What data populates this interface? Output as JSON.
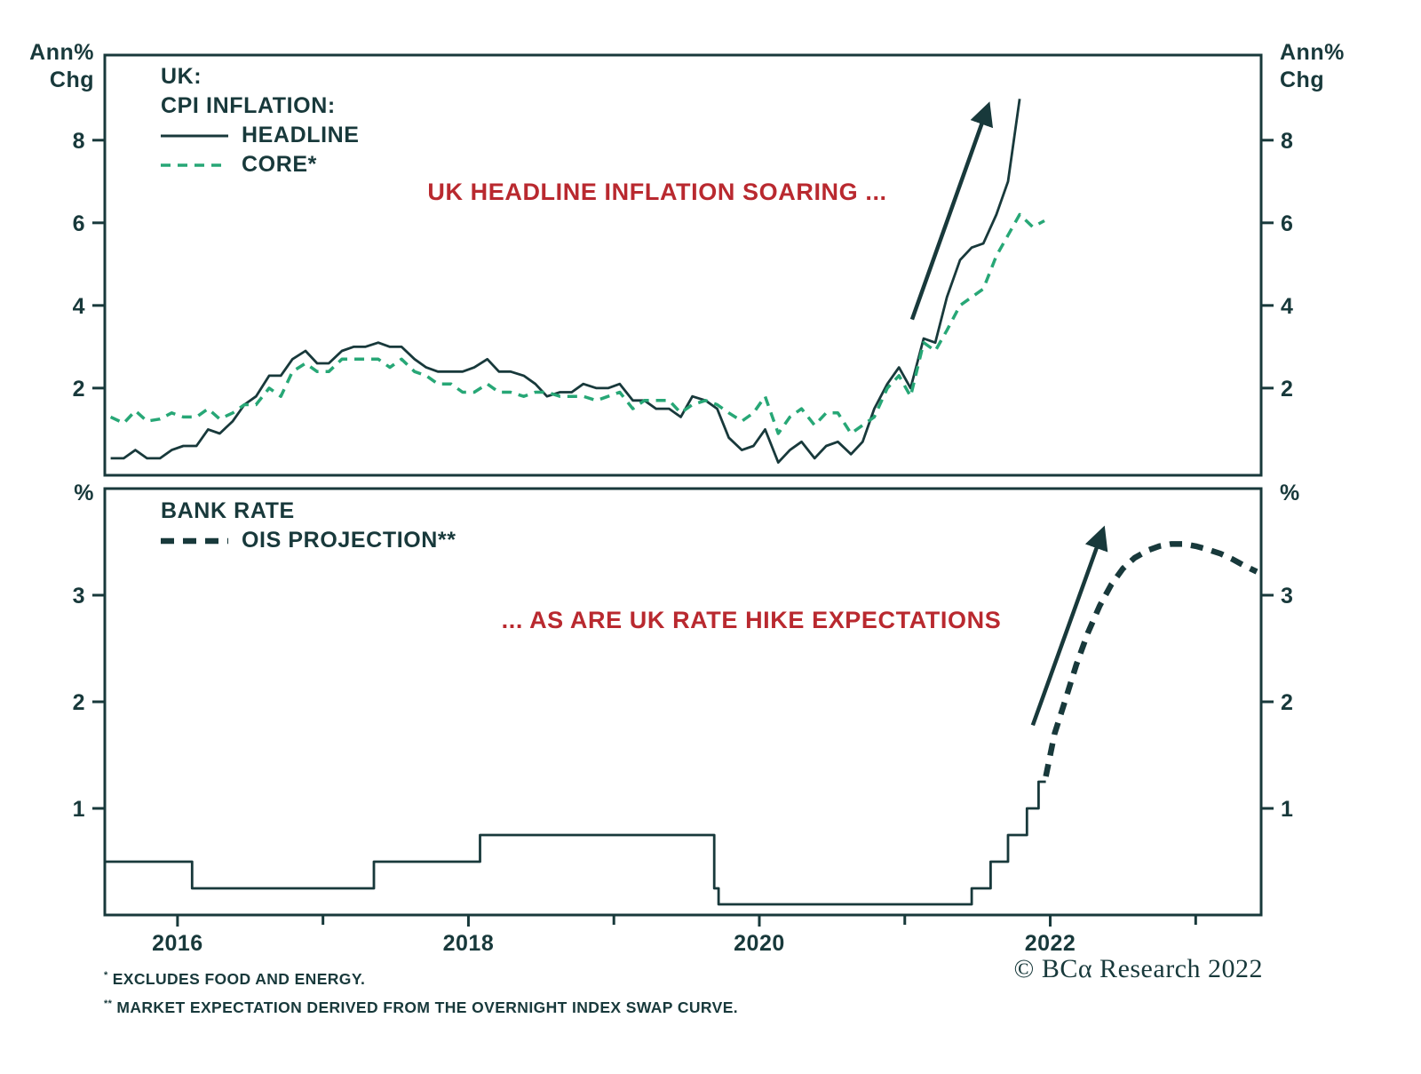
{
  "colors": {
    "background": "#ffffff",
    "dark": "#18393b",
    "green": "#27a776",
    "red": "#b9292f"
  },
  "axes": {
    "top_left_unit": [
      "Ann%",
      "Chg"
    ],
    "top_right_unit": [
      "Ann%",
      "Chg"
    ],
    "bottom_left_unit": "%",
    "bottom_right_unit": "%"
  },
  "legend_top": {
    "line1": "UK:",
    "line2": "CPI INFLATION:"
  },
  "chart_data": [
    {
      "type": "line",
      "panel": "top",
      "ylabel": "Ann% Chg",
      "ylim": [
        -0.11,
        10.06
      ],
      "yticks": [
        2,
        4,
        6,
        8
      ],
      "xlim": [
        2016.0,
        2023.95
      ],
      "grid": false,
      "legend_position": "top-left-inside",
      "series": [
        {
          "name": "HEADLINE",
          "style": "solid",
          "color": "#18393b",
          "points": [
            [
              2016.04,
              0.3
            ],
            [
              2016.13,
              0.3
            ],
            [
              2016.21,
              0.5
            ],
            [
              2016.29,
              0.3
            ],
            [
              2016.38,
              0.3
            ],
            [
              2016.46,
              0.5
            ],
            [
              2016.54,
              0.6
            ],
            [
              2016.63,
              0.6
            ],
            [
              2016.71,
              1.0
            ],
            [
              2016.79,
              0.9
            ],
            [
              2016.88,
              1.2
            ],
            [
              2016.96,
              1.6
            ],
            [
              2017.04,
              1.8
            ],
            [
              2017.13,
              2.3
            ],
            [
              2017.21,
              2.3
            ],
            [
              2017.29,
              2.7
            ],
            [
              2017.38,
              2.9
            ],
            [
              2017.46,
              2.6
            ],
            [
              2017.54,
              2.6
            ],
            [
              2017.63,
              2.9
            ],
            [
              2017.71,
              3.0
            ],
            [
              2017.79,
              3.0
            ],
            [
              2017.88,
              3.1
            ],
            [
              2017.96,
              3.0
            ],
            [
              2018.04,
              3.0
            ],
            [
              2018.13,
              2.7
            ],
            [
              2018.21,
              2.5
            ],
            [
              2018.29,
              2.4
            ],
            [
              2018.38,
              2.4
            ],
            [
              2018.46,
              2.4
            ],
            [
              2018.54,
              2.5
            ],
            [
              2018.63,
              2.7
            ],
            [
              2018.71,
              2.4
            ],
            [
              2018.79,
              2.4
            ],
            [
              2018.88,
              2.3
            ],
            [
              2018.96,
              2.1
            ],
            [
              2019.04,
              1.8
            ],
            [
              2019.13,
              1.9
            ],
            [
              2019.21,
              1.9
            ],
            [
              2019.29,
              2.1
            ],
            [
              2019.38,
              2.0
            ],
            [
              2019.46,
              2.0
            ],
            [
              2019.54,
              2.1
            ],
            [
              2019.63,
              1.7
            ],
            [
              2019.71,
              1.7
            ],
            [
              2019.79,
              1.5
            ],
            [
              2019.88,
              1.5
            ],
            [
              2019.96,
              1.3
            ],
            [
              2020.04,
              1.8
            ],
            [
              2020.13,
              1.7
            ],
            [
              2020.21,
              1.5
            ],
            [
              2020.29,
              0.8
            ],
            [
              2020.38,
              0.5
            ],
            [
              2020.46,
              0.6
            ],
            [
              2020.54,
              1.0
            ],
            [
              2020.63,
              0.2
            ],
            [
              2020.71,
              0.5
            ],
            [
              2020.79,
              0.7
            ],
            [
              2020.88,
              0.3
            ],
            [
              2020.96,
              0.6
            ],
            [
              2021.04,
              0.7
            ],
            [
              2021.13,
              0.4
            ],
            [
              2021.21,
              0.7
            ],
            [
              2021.29,
              1.5
            ],
            [
              2021.38,
              2.1
            ],
            [
              2021.46,
              2.5
            ],
            [
              2021.54,
              2.0
            ],
            [
              2021.63,
              3.2
            ],
            [
              2021.71,
              3.1
            ],
            [
              2021.79,
              4.2
            ],
            [
              2021.88,
              5.1
            ],
            [
              2021.96,
              5.4
            ],
            [
              2022.04,
              5.5
            ],
            [
              2022.13,
              6.2
            ],
            [
              2022.21,
              7.0
            ],
            [
              2022.29,
              9.0
            ]
          ]
        },
        {
          "name": "CORE*",
          "style": "dashed",
          "color": "#27a776",
          "points": [
            [
              2016.04,
              1.3
            ],
            [
              2016.13,
              1.15
            ],
            [
              2016.21,
              1.45
            ],
            [
              2016.29,
              1.2
            ],
            [
              2016.38,
              1.25
            ],
            [
              2016.46,
              1.4
            ],
            [
              2016.54,
              1.3
            ],
            [
              2016.63,
              1.3
            ],
            [
              2016.71,
              1.5
            ],
            [
              2016.79,
              1.25
            ],
            [
              2016.88,
              1.4
            ],
            [
              2016.96,
              1.6
            ],
            [
              2017.04,
              1.6
            ],
            [
              2017.13,
              2.0
            ],
            [
              2017.21,
              1.8
            ],
            [
              2017.29,
              2.4
            ],
            [
              2017.38,
              2.6
            ],
            [
              2017.46,
              2.4
            ],
            [
              2017.54,
              2.4
            ],
            [
              2017.63,
              2.7
            ],
            [
              2017.71,
              2.7
            ],
            [
              2017.79,
              2.7
            ],
            [
              2017.88,
              2.7
            ],
            [
              2017.96,
              2.5
            ],
            [
              2018.04,
              2.7
            ],
            [
              2018.13,
              2.4
            ],
            [
              2018.21,
              2.3
            ],
            [
              2018.29,
              2.1
            ],
            [
              2018.38,
              2.1
            ],
            [
              2018.46,
              1.9
            ],
            [
              2018.54,
              1.9
            ],
            [
              2018.63,
              2.1
            ],
            [
              2018.71,
              1.9
            ],
            [
              2018.79,
              1.9
            ],
            [
              2018.88,
              1.8
            ],
            [
              2018.96,
              1.9
            ],
            [
              2019.04,
              1.9
            ],
            [
              2019.13,
              1.8
            ],
            [
              2019.21,
              1.8
            ],
            [
              2019.29,
              1.8
            ],
            [
              2019.38,
              1.7
            ],
            [
              2019.46,
              1.8
            ],
            [
              2019.54,
              1.9
            ],
            [
              2019.63,
              1.5
            ],
            [
              2019.71,
              1.7
            ],
            [
              2019.79,
              1.7
            ],
            [
              2019.88,
              1.7
            ],
            [
              2019.96,
              1.4
            ],
            [
              2020.04,
              1.6
            ],
            [
              2020.13,
              1.7
            ],
            [
              2020.21,
              1.6
            ],
            [
              2020.29,
              1.4
            ],
            [
              2020.38,
              1.2
            ],
            [
              2020.46,
              1.4
            ],
            [
              2020.54,
              1.8
            ],
            [
              2020.63,
              0.9
            ],
            [
              2020.71,
              1.3
            ],
            [
              2020.79,
              1.5
            ],
            [
              2020.88,
              1.1
            ],
            [
              2020.96,
              1.4
            ],
            [
              2021.04,
              1.4
            ],
            [
              2021.13,
              0.9
            ],
            [
              2021.21,
              1.1
            ],
            [
              2021.29,
              1.3
            ],
            [
              2021.38,
              2.0
            ],
            [
              2021.46,
              2.3
            ],
            [
              2021.54,
              1.8
            ],
            [
              2021.63,
              3.1
            ],
            [
              2021.71,
              2.9
            ],
            [
              2021.79,
              3.4
            ],
            [
              2021.88,
              4.0
            ],
            [
              2021.96,
              4.2
            ],
            [
              2022.04,
              4.4
            ],
            [
              2022.13,
              5.2
            ],
            [
              2022.21,
              5.7
            ],
            [
              2022.29,
              6.2
            ],
            [
              2022.38,
              5.9
            ],
            [
              2022.46,
              6.05
            ]
          ]
        }
      ],
      "annotation": {
        "text": "UK HEADLINE INFLATION SOARING ...",
        "color": "#b9292f"
      },
      "arrow": {
        "from": [
          2021.55,
          3.66
        ],
        "to": [
          2022.07,
          8.8
        ]
      }
    },
    {
      "type": "line",
      "panel": "bottom",
      "ylabel": "%",
      "ylim": [
        0,
        4.0
      ],
      "yticks": [
        1,
        2,
        3
      ],
      "xlim": [
        2016.0,
        2023.95
      ],
      "grid": false,
      "legend_position": "top-left-inside",
      "xticks_major": [
        {
          "x": 2016.5,
          "label": "2016"
        },
        {
          "x": 2018.5,
          "label": "2018"
        },
        {
          "x": 2020.5,
          "label": "2020"
        },
        {
          "x": 2022.5,
          "label": "2022"
        }
      ],
      "xticks_minor": [
        2017.5,
        2019.5,
        2021.5,
        2023.5
      ],
      "series": [
        {
          "name": "BANK RATE",
          "style": "step-solid",
          "color": "#18393b",
          "points": [
            [
              2016.0,
              0.5
            ],
            [
              2016.6,
              0.5
            ],
            [
              2016.6,
              0.25
            ],
            [
              2017.85,
              0.25
            ],
            [
              2017.85,
              0.5
            ],
            [
              2018.58,
              0.5
            ],
            [
              2018.58,
              0.75
            ],
            [
              2020.19,
              0.75
            ],
            [
              2020.19,
              0.25
            ],
            [
              2020.22,
              0.25
            ],
            [
              2020.22,
              0.1
            ],
            [
              2021.96,
              0.1
            ],
            [
              2021.96,
              0.25
            ],
            [
              2022.09,
              0.25
            ],
            [
              2022.09,
              0.5
            ],
            [
              2022.21,
              0.5
            ],
            [
              2022.21,
              0.75
            ],
            [
              2022.34,
              0.75
            ],
            [
              2022.34,
              1.0
            ],
            [
              2022.42,
              1.0
            ],
            [
              2022.42,
              1.25
            ],
            [
              2022.47,
              1.25
            ]
          ]
        },
        {
          "name": "OIS PROJECTION**",
          "style": "dashed-bold",
          "color": "#18393b",
          "points": [
            [
              2022.47,
              1.3
            ],
            [
              2022.53,
              1.7
            ],
            [
              2022.6,
              2.0
            ],
            [
              2022.68,
              2.35
            ],
            [
              2022.76,
              2.65
            ],
            [
              2022.84,
              2.9
            ],
            [
              2022.92,
              3.1
            ],
            [
              2023.0,
              3.25
            ],
            [
              2023.08,
              3.35
            ],
            [
              2023.17,
              3.42
            ],
            [
              2023.25,
              3.46
            ],
            [
              2023.33,
              3.48
            ],
            [
              2023.42,
              3.48
            ],
            [
              2023.5,
              3.46
            ],
            [
              2023.58,
              3.43
            ],
            [
              2023.67,
              3.39
            ],
            [
              2023.75,
              3.34
            ],
            [
              2023.83,
              3.28
            ],
            [
              2023.92,
              3.22
            ]
          ]
        }
      ],
      "annotation": {
        "text": "... AS ARE UK RATE HIKE EXPECTATIONS",
        "color": "#b9292f"
      },
      "arrow": {
        "from": [
          2022.38,
          1.78
        ],
        "to": [
          2022.86,
          3.6
        ]
      }
    }
  ],
  "footnotes": [
    {
      "marker": "*",
      "text": "EXCLUDES FOOD AND ENERGY."
    },
    {
      "marker": "**",
      "text": "MARKET EXPECTATION DERIVED FROM THE OVERNIGHT INDEX SWAP CURVE."
    }
  ],
  "copyright": "© BCα Research 2022"
}
